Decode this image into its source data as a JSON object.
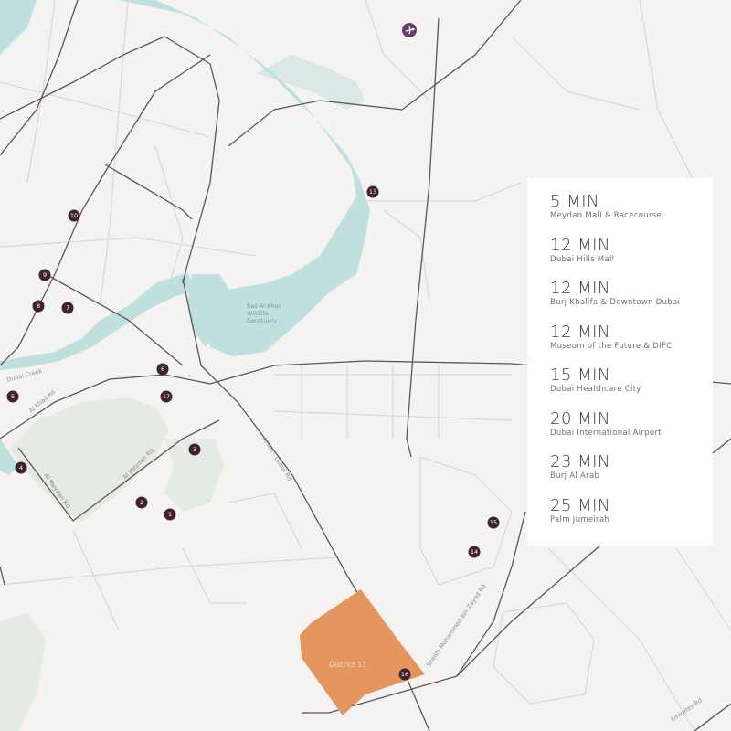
{
  "map": {
    "district_label": "District 11",
    "district_color": "#e5965e",
    "water_color": "#bfe0df",
    "marker_color": "#3f2130",
    "airport_icon": "airplane-icon",
    "labels": {
      "sanctuary": [
        "Ras Al Khor",
        "Wildlife",
        "Sanctuary"
      ],
      "dubai_creek": "Dubai Creek",
      "al_khail": "Al Khail Rd",
      "al_meydan_1": "Al Meydan Rd",
      "al_meydan_2": "Al Meydan Rd",
      "al_ain": "Al Ain - Dubai Rd",
      "mbz": "Sheikh Mohammed Bin Zayed Rd",
      "emirates": "Emirates Rd"
    },
    "markers": [
      "1",
      "2",
      "3",
      "4",
      "5",
      "6",
      "7",
      "8",
      "9",
      "10",
      "13",
      "14",
      "15",
      "16",
      "17"
    ]
  },
  "travel_times": [
    {
      "time": "5 MIN",
      "place": "Meydan Mall & Racecourse"
    },
    {
      "time": "12 MIN",
      "place": "Dubai Hills Mall"
    },
    {
      "time": "12 MIN",
      "place": "Burj Khalifa & Downtown Dubai"
    },
    {
      "time": "12 MIN",
      "place": "Museum of the Future & DIFC"
    },
    {
      "time": "15 MIN",
      "place": "Dubai Healthcare City"
    },
    {
      "time": "20 MIN",
      "place": "Dubai International Airport"
    },
    {
      "time": "23 MIN",
      "place": "Burj Al Arab"
    },
    {
      "time": "25 MIN",
      "place": "Palm Jumeirah"
    }
  ]
}
